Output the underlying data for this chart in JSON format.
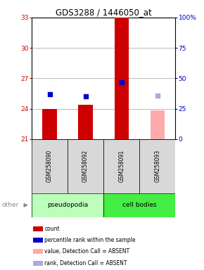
{
  "title": "GDS3288 / 1446050_at",
  "samples": [
    "GSM258090",
    "GSM258092",
    "GSM258091",
    "GSM258093"
  ],
  "group_colors": {
    "pseudopodia": "#bbffbb",
    "cell bodies": "#44ee44"
  },
  "bar_values": [
    24.0,
    24.4,
    33.0,
    null
  ],
  "bar_color": "#cc0000",
  "absent_bar_values": [
    null,
    null,
    null,
    23.8
  ],
  "absent_bar_color": "#ffaaaa",
  "rank_dots": [
    25.4,
    25.2,
    26.6,
    null
  ],
  "rank_dot_color": "#0000cc",
  "absent_rank_dots": [
    null,
    null,
    null,
    25.3
  ],
  "absent_rank_dot_color": "#aaaadd",
  "ylim_left": [
    21,
    33
  ],
  "yticks_left": [
    21,
    24,
    27,
    30,
    33
  ],
  "ylim_right": [
    0,
    100
  ],
  "yticks_right": [
    0,
    25,
    50,
    75,
    100
  ],
  "ytick_labels_right": [
    "0",
    "25",
    "50",
    "75",
    "100%"
  ],
  "left_tick_color": "#cc0000",
  "right_tick_color": "#0000cc",
  "bar_bottom": 21,
  "bar_width": 0.4,
  "rank_dot_size": 18,
  "legend_items": [
    {
      "color": "#cc0000",
      "label": "count"
    },
    {
      "color": "#0000cc",
      "label": "percentile rank within the sample"
    },
    {
      "color": "#ffaaaa",
      "label": "value, Detection Call = ABSENT"
    },
    {
      "color": "#aaaadd",
      "label": "rank, Detection Call = ABSENT"
    }
  ],
  "other_label": "other",
  "figsize": [
    2.9,
    3.84
  ],
  "dpi": 100
}
